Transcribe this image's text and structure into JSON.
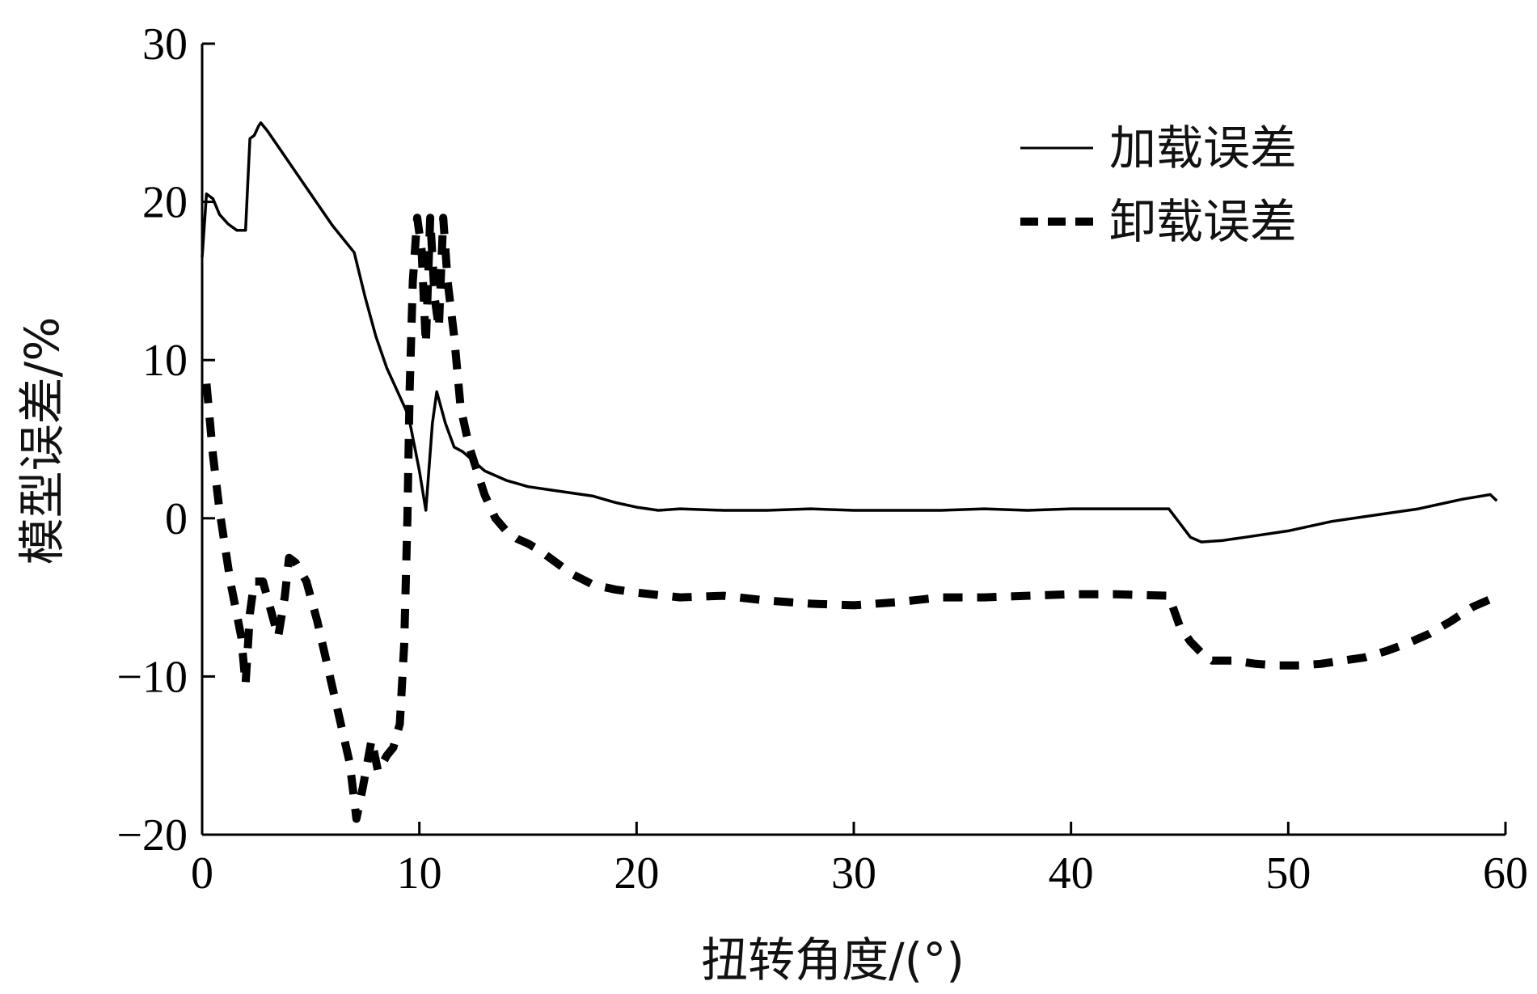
{
  "chart_data": {
    "type": "line",
    "xlabel": "扭转角度/(°)",
    "ylabel": "模型误差/%",
    "xlim": [
      0,
      60
    ],
    "ylim": [
      -20,
      30
    ],
    "xticks": [
      0,
      10,
      20,
      30,
      40,
      50,
      60
    ],
    "yticks": [
      -20,
      -10,
      0,
      10,
      20,
      30
    ],
    "xtick_labels": [
      "0",
      "10",
      "20",
      "30",
      "40",
      "50",
      "60"
    ],
    "ytick_labels": [
      "−20",
      "−10",
      "0",
      "10",
      "20",
      "30"
    ],
    "grid": false,
    "legend_position": "top-right",
    "series": [
      {
        "name": "加载误差",
        "style": "solid",
        "color": "#000000",
        "x": [
          0.0,
          0.2,
          0.5,
          0.8,
          1.2,
          1.6,
          2.0,
          2.2,
          2.4,
          2.6,
          2.7,
          3.0,
          4.0,
          5.0,
          6.0,
          7.0,
          7.5,
          8.0,
          8.5,
          9.0,
          9.5,
          10.0,
          10.3,
          10.6,
          10.8,
          11.2,
          11.6,
          12.0,
          13.0,
          14.0,
          15.0,
          16.0,
          17.0,
          18.0,
          19.0,
          20.0,
          21.0,
          22.0,
          24.0,
          26.0,
          28.0,
          30.0,
          32.0,
          34.0,
          36.0,
          38.0,
          40.0,
          42.0,
          44.0,
          44.5,
          45.0,
          45.5,
          46.0,
          47.0,
          48.0,
          50.0,
          52.0,
          54.0,
          56.0,
          58.0,
          59.3,
          59.6
        ],
        "y": [
          16.5,
          20.5,
          20.2,
          19.2,
          18.6,
          18.2,
          18.2,
          24.0,
          24.2,
          24.8,
          25.0,
          24.5,
          22.5,
          20.5,
          18.5,
          16.8,
          14.0,
          11.5,
          9.5,
          8.0,
          6.5,
          3.0,
          0.5,
          6.0,
          8.0,
          6.0,
          4.5,
          4.2,
          3.0,
          2.4,
          2.0,
          1.8,
          1.6,
          1.4,
          1.0,
          0.7,
          0.5,
          0.6,
          0.5,
          0.5,
          0.6,
          0.5,
          0.5,
          0.5,
          0.6,
          0.5,
          0.6,
          0.6,
          0.6,
          0.6,
          -0.3,
          -1.2,
          -1.5,
          -1.4,
          -1.2,
          -0.8,
          -0.2,
          0.2,
          0.6,
          1.2,
          1.5,
          1.1
        ]
      },
      {
        "name": "卸载误差",
        "style": "dashed",
        "color": "#000000",
        "x": [
          0.2,
          0.5,
          0.8,
          1.3,
          1.8,
          2.0,
          2.2,
          2.4,
          2.8,
          3.1,
          3.5,
          3.8,
          4.0,
          4.3,
          4.8,
          5.3,
          5.8,
          6.3,
          6.8,
          7.1,
          7.4,
          7.8,
          8.1,
          8.5,
          8.8,
          9.1,
          9.3,
          9.45,
          9.55,
          9.7,
          9.9,
          10.1,
          10.3,
          10.5,
          10.7,
          10.9,
          11.1,
          11.3,
          11.6,
          11.9,
          12.3,
          13.0,
          13.5,
          14.0,
          14.5,
          15.0,
          15.5,
          16.0,
          17.0,
          18.0,
          19.0,
          20.0,
          22.0,
          24.0,
          26.0,
          28.0,
          30.0,
          32.0,
          34.0,
          36.0,
          38.0,
          40.0,
          42.0,
          44.5,
          45.0,
          45.5,
          46.0,
          46.5,
          47.5,
          48.5,
          49.5,
          50.5,
          51.5,
          52.5,
          53.5,
          54.5,
          55.5,
          56.5,
          57.5,
          58.5,
          59.5
        ],
        "y": [
          8.5,
          4.0,
          0.5,
          -4.0,
          -7.5,
          -10.5,
          -6.0,
          -4.0,
          -4.0,
          -5.5,
          -7.5,
          -5.0,
          -2.5,
          -2.8,
          -4.0,
          -6.5,
          -9.5,
          -12.5,
          -15.5,
          -19.0,
          -17.0,
          -14.0,
          -16.0,
          -15.0,
          -14.5,
          -13.0,
          -8.0,
          0.0,
          8.0,
          15.0,
          19.0,
          17.0,
          11.0,
          19.0,
          14.0,
          12.0,
          19.0,
          15.0,
          11.5,
          7.0,
          4.5,
          1.5,
          0.0,
          -0.8,
          -1.3,
          -1.6,
          -2.0,
          -2.5,
          -3.5,
          -4.2,
          -4.5,
          -4.7,
          -5.0,
          -4.9,
          -5.2,
          -5.4,
          -5.5,
          -5.3,
          -5.0,
          -5.0,
          -4.9,
          -4.8,
          -4.8,
          -4.9,
          -6.8,
          -7.8,
          -8.5,
          -9.0,
          -9.0,
          -9.2,
          -9.3,
          -9.3,
          -9.2,
          -9.0,
          -8.8,
          -8.4,
          -7.9,
          -7.3,
          -6.5,
          -5.6,
          -5.0
        ]
      }
    ]
  }
}
